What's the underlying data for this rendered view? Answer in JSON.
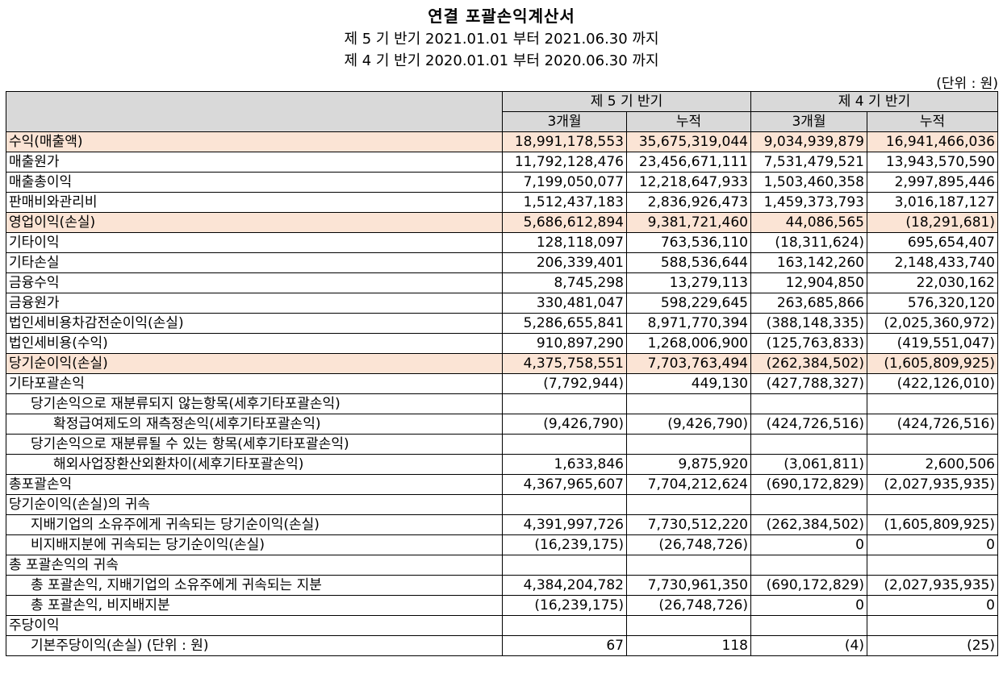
{
  "title": "연결 포괄손익계산서",
  "period_current": "제 5 기 반기 2021.01.01 부터 2021.06.30 까지",
  "period_prior": "제 4 기 반기 2020.01.01 부터 2020.06.30 까지",
  "unit": "(단위 : 원)",
  "headers": {
    "current_period": "제 5 기 반기",
    "prior_period": "제 4 기 반기",
    "three_month": "3개월",
    "cumulative": "누적"
  },
  "colors": {
    "highlight": "#fbe4d5",
    "header": "#d9d9d9"
  },
  "rows": [
    {
      "label": "수익(매출액)",
      "indent": 0,
      "highlight": true,
      "values": [
        "18,991,178,553",
        "35,675,319,044",
        "9,034,939,879",
        "16,941,466,036"
      ]
    },
    {
      "label": "매출원가",
      "indent": 0,
      "highlight": false,
      "values": [
        "11,792,128,476",
        "23,456,671,111",
        "7,531,479,521",
        "13,943,570,590"
      ]
    },
    {
      "label": "매출총이익",
      "indent": 0,
      "highlight": false,
      "values": [
        "7,199,050,077",
        "12,218,647,933",
        "1,503,460,358",
        "2,997,895,446"
      ]
    },
    {
      "label": "판매비와관리비",
      "indent": 0,
      "highlight": false,
      "values": [
        "1,512,437,183",
        "2,836,926,473",
        "1,459,373,793",
        "3,016,187,127"
      ]
    },
    {
      "label": "영업이익(손실)",
      "indent": 0,
      "highlight": true,
      "values": [
        "5,686,612,894",
        "9,381,721,460",
        "44,086,565",
        "(18,291,681)"
      ]
    },
    {
      "label": "기타이익",
      "indent": 0,
      "highlight": false,
      "values": [
        "128,118,097",
        "763,536,110",
        "(18,311,624)",
        "695,654,407"
      ]
    },
    {
      "label": "기타손실",
      "indent": 0,
      "highlight": false,
      "values": [
        "206,339,401",
        "588,536,644",
        "163,142,260",
        "2,148,433,740"
      ]
    },
    {
      "label": "금융수익",
      "indent": 0,
      "highlight": false,
      "values": [
        "8,745,298",
        "13,279,113",
        "12,904,850",
        "22,030,162"
      ]
    },
    {
      "label": "금융원가",
      "indent": 0,
      "highlight": false,
      "values": [
        "330,481,047",
        "598,229,645",
        "263,685,866",
        "576,320,120"
      ]
    },
    {
      "label": "법인세비용차감전순이익(손실)",
      "indent": 0,
      "highlight": false,
      "values": [
        "5,286,655,841",
        "8,971,770,394",
        "(388,148,335)",
        "(2,025,360,972)"
      ]
    },
    {
      "label": "법인세비용(수익)",
      "indent": 0,
      "highlight": false,
      "values": [
        "910,897,290",
        "1,268,006,900",
        "(125,763,833)",
        "(419,551,047)"
      ]
    },
    {
      "label": "당기순이익(손실)",
      "indent": 0,
      "highlight": true,
      "values": [
        "4,375,758,551",
        "7,703,763,494",
        "(262,384,502)",
        "(1,605,809,925)"
      ]
    },
    {
      "label": "기타포괄손익",
      "indent": 0,
      "highlight": false,
      "values": [
        "(7,792,944)",
        "449,130",
        "(427,788,327)",
        "(422,126,010)"
      ]
    },
    {
      "label": "당기손익으로 재분류되지 않는항목(세후기타포괄손익)",
      "indent": 1,
      "highlight": false,
      "values": [
        "",
        "",
        "",
        ""
      ]
    },
    {
      "label": "확정급여제도의 재측정손익(세후기타포괄손익)",
      "indent": 2,
      "highlight": false,
      "values": [
        "(9,426,790)",
        "(9,426,790)",
        "(424,726,516)",
        "(424,726,516)"
      ]
    },
    {
      "label": "당기손익으로 재분류될 수 있는 항목(세후기타포괄손익)",
      "indent": 1,
      "highlight": false,
      "values": [
        "",
        "",
        "",
        ""
      ]
    },
    {
      "label": "해외사업장환산외환차이(세후기타포괄손익)",
      "indent": 2,
      "highlight": false,
      "values": [
        "1,633,846",
        "9,875,920",
        "(3,061,811)",
        "2,600,506"
      ]
    },
    {
      "label": "총포괄손익",
      "indent": 0,
      "highlight": false,
      "values": [
        "4,367,965,607",
        "7,704,212,624",
        "(690,172,829)",
        "(2,027,935,935)"
      ]
    },
    {
      "label": "당기순이익(손실)의 귀속",
      "indent": 0,
      "highlight": false,
      "values": [
        "",
        "",
        "",
        ""
      ]
    },
    {
      "label": "지배기업의 소유주에게 귀속되는 당기순이익(손실)",
      "indent": 1,
      "highlight": false,
      "values": [
        "4,391,997,726",
        "7,730,512,220",
        "(262,384,502)",
        "(1,605,809,925)"
      ]
    },
    {
      "label": "비지배지분에 귀속되는 당기순이익(손실)",
      "indent": 1,
      "highlight": false,
      "values": [
        "(16,239,175)",
        "(26,748,726)",
        "0",
        "0"
      ]
    },
    {
      "label": "총 포괄손익의 귀속",
      "indent": 0,
      "highlight": false,
      "values": [
        "",
        "",
        "",
        ""
      ]
    },
    {
      "label": "총 포괄손익, 지배기업의 소유주에게 귀속되는 지분",
      "indent": 1,
      "highlight": false,
      "values": [
        "4,384,204,782",
        "7,730,961,350",
        "(690,172,829)",
        "(2,027,935,935)"
      ]
    },
    {
      "label": "총 포괄손익, 비지배지분",
      "indent": 1,
      "highlight": false,
      "values": [
        "(16,239,175)",
        "(26,748,726)",
        "0",
        "0"
      ]
    },
    {
      "label": "주당이익",
      "indent": 0,
      "highlight": false,
      "values": [
        "",
        "",
        "",
        ""
      ]
    },
    {
      "label": "기본주당이익(손실) (단위 : 원)",
      "indent": 1,
      "highlight": false,
      "values": [
        "67",
        "118",
        "(4)",
        "(25)"
      ]
    }
  ]
}
